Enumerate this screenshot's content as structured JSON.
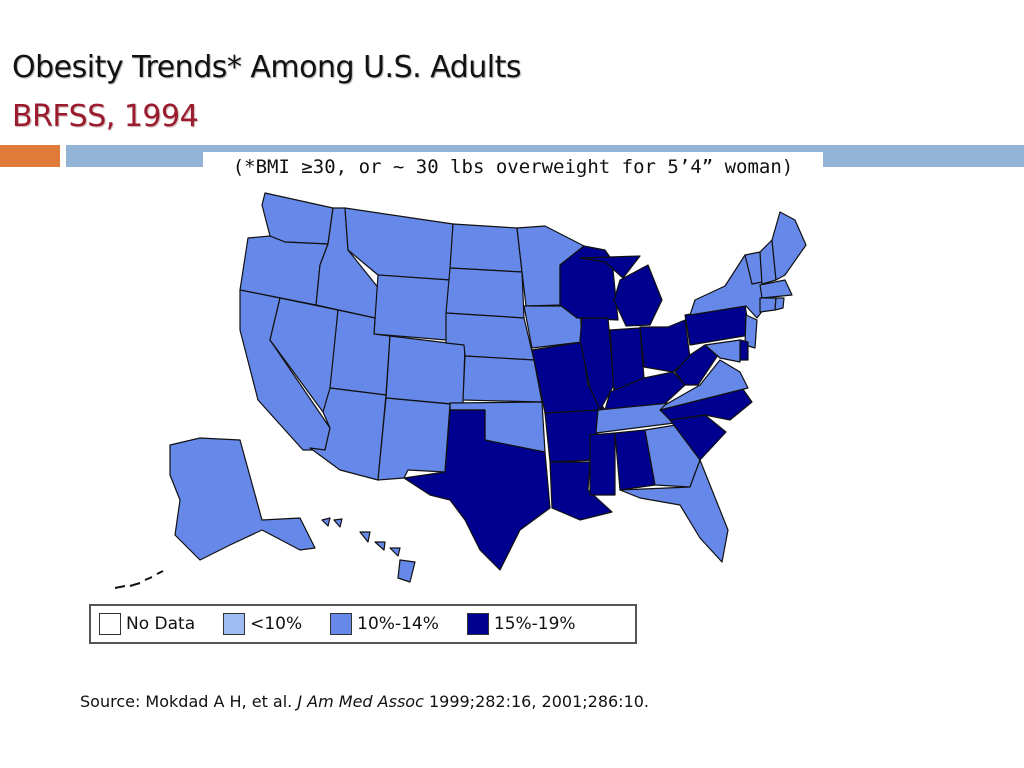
{
  "slide": {
    "title": "Obesity Trends* Among U.S. Adults",
    "subtitle": "BRFSS, 1994",
    "note": "(*BMI ≥30, or ~ 30 lbs overweight for 5’4” woman)",
    "colors": {
      "title": "#111111",
      "subtitle": "#9b1b2e",
      "bar_orange": "#e07b3a",
      "bar_blue": "#93b4d6"
    }
  },
  "legend": {
    "items": [
      {
        "label": "No Data",
        "color": "#ffffff"
      },
      {
        "label": "<10%",
        "color": "#9ebbf2"
      },
      {
        "label": "10%-14%",
        "color": "#6688e8"
      },
      {
        "label": "15%-19%",
        "color": "#000090"
      }
    ]
  },
  "map": {
    "states": {
      "WA": "10%-14%",
      "OR": "10%-14%",
      "CA": "10%-14%",
      "NV": "10%-14%",
      "ID": "10%-14%",
      "MT": "10%-14%",
      "WY": "10%-14%",
      "UT": "10%-14%",
      "AZ": "10%-14%",
      "CO": "10%-14%",
      "NM": "10%-14%",
      "ND": "10%-14%",
      "SD": "10%-14%",
      "NE": "10%-14%",
      "KS": "10%-14%",
      "OK": "10%-14%",
      "TX": "15%-19%",
      "MN": "10%-14%",
      "IA": "10%-14%",
      "MO": "15%-19%",
      "AR": "15%-19%",
      "LA": "15%-19%",
      "WI": "15%-19%",
      "IL": "15%-19%",
      "MI": "15%-19%",
      "IN": "15%-19%",
      "OH": "15%-19%",
      "KY": "15%-19%",
      "TN": "10%-14%",
      "MS": "15%-19%",
      "AL": "15%-19%",
      "GA": "10%-14%",
      "FL": "10%-14%",
      "SC": "15%-19%",
      "NC": "15%-19%",
      "VA": "10%-14%",
      "WV": "15%-19%",
      "PA": "15%-19%",
      "NY": "10%-14%",
      "ME": "10%-14%",
      "VT": "10%-14%",
      "NH": "10%-14%",
      "MA": "10%-14%",
      "CT": "10%-14%",
      "RI": "10%-14%",
      "NJ": "10%-14%",
      "DE": "15%-19%",
      "MD": "10%-14%",
      "AK": "10%-14%",
      "HI": "10%-14%"
    }
  },
  "source": {
    "prefix": "Source: Mokdad A H, et al. ",
    "journal": "J Am Med Assoc",
    "suffix": " 1999;282:16, 2001;286:10."
  }
}
